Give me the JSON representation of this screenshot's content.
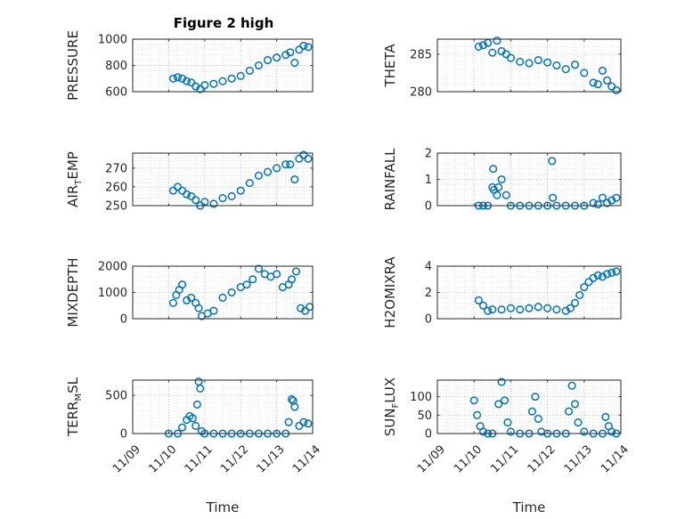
{
  "figure": {
    "title": "Figure 2 high",
    "xlabel": "Time"
  },
  "chart_data": [
    {
      "type": "scatter",
      "panel": "pressure",
      "ylabel": "PRESSURE",
      "ylim": [
        600,
        1000
      ],
      "yticks": [
        "600",
        "800",
        "1000"
      ],
      "ytick_values": [
        600,
        800,
        1000
      ],
      "x": [
        "2011-11-10T03:00",
        "2011-11-10T06:00",
        "2011-11-10T09:00",
        "2011-11-10T12:00",
        "2011-11-10T15:00",
        "2011-11-10T18:00",
        "2011-11-10T21:00",
        "2011-11-11T00:00",
        "2011-11-11T06:00",
        "2011-11-11T12:00",
        "2011-11-11T18:00",
        "2011-11-12T00:00",
        "2011-11-12T06:00",
        "2011-11-12T12:00",
        "2011-11-12T18:00",
        "2011-11-13T00:00",
        "2011-11-13T06:00",
        "2011-11-13T09:00",
        "2011-11-13T12:00",
        "2011-11-13T15:00",
        "2011-11-13T18:00",
        "2011-11-13T21:00"
      ],
      "y": [
        700,
        710,
        700,
        680,
        670,
        640,
        620,
        650,
        660,
        680,
        700,
        720,
        760,
        800,
        840,
        860,
        880,
        900,
        820,
        920,
        950,
        940
      ]
    },
    {
      "type": "scatter",
      "panel": "theta",
      "ylabel": "THETA",
      "ylim": [
        280,
        287
      ],
      "yticks": [
        "280",
        "285"
      ],
      "ytick_values": [
        280,
        285
      ],
      "x": [
        "2011-11-10T03:00",
        "2011-11-10T06:00",
        "2011-11-10T09:00",
        "2011-11-10T12:00",
        "2011-11-10T15:00",
        "2011-11-10T18:00",
        "2011-11-10T21:00",
        "2011-11-11T00:00",
        "2011-11-11T06:00",
        "2011-11-11T12:00",
        "2011-11-11T18:00",
        "2011-11-12T00:00",
        "2011-11-12T06:00",
        "2011-11-12T12:00",
        "2011-11-12T18:00",
        "2011-11-13T00:00",
        "2011-11-13T06:00",
        "2011-11-13T09:00",
        "2011-11-13T12:00",
        "2011-11-13T15:00",
        "2011-11-13T18:00",
        "2011-11-13T21:00"
      ],
      "y": [
        286,
        286.2,
        286.5,
        285.2,
        286.8,
        285.4,
        285,
        284.5,
        284,
        283.8,
        284.2,
        283.9,
        283.5,
        283,
        283.6,
        282.5,
        281.2,
        281,
        282.8,
        281.5,
        280.7,
        280.2
      ]
    },
    {
      "type": "scatter",
      "panel": "air_temp",
      "ylabel_main": "AIR",
      "ylabel_sub": "T",
      "ylabel_tail": "EMP",
      "ylim": [
        250,
        278
      ],
      "yticks": [
        "250",
        "260",
        "270"
      ],
      "ytick_values": [
        250,
        260,
        270
      ],
      "x": [
        "2011-11-10T03:00",
        "2011-11-10T06:00",
        "2011-11-10T09:00",
        "2011-11-10T12:00",
        "2011-11-10T15:00",
        "2011-11-10T18:00",
        "2011-11-10T21:00",
        "2011-11-11T00:00",
        "2011-11-11T06:00",
        "2011-11-11T12:00",
        "2011-11-11T18:00",
        "2011-11-12T00:00",
        "2011-11-12T06:00",
        "2011-11-12T12:00",
        "2011-11-12T18:00",
        "2011-11-13T00:00",
        "2011-11-13T06:00",
        "2011-11-13T09:00",
        "2011-11-13T12:00",
        "2011-11-13T15:00",
        "2011-11-13T18:00",
        "2011-11-13T21:00"
      ],
      "y": [
        258,
        260,
        258,
        256,
        255,
        253,
        250,
        252,
        251,
        254,
        255,
        258,
        262,
        266,
        268,
        270,
        272,
        272,
        264,
        275,
        277,
        275
      ]
    },
    {
      "type": "scatter",
      "panel": "rainfall",
      "ylabel": "RAINFALL",
      "ylim": [
        0,
        2
      ],
      "yticks": [
        "0",
        "1",
        "2"
      ],
      "ytick_values": [
        0,
        1,
        2
      ],
      "x": [
        "2011-11-10T03:00",
        "2011-11-10T06:00",
        "2011-11-10T09:00",
        "2011-11-10T12:00",
        "2011-11-10T12:30",
        "2011-11-10T13:00",
        "2011-11-10T15:00",
        "2011-11-10T16:00",
        "2011-11-10T18:00",
        "2011-11-10T21:00",
        "2011-11-11T00:00",
        "2011-11-11T06:00",
        "2011-11-11T12:00",
        "2011-11-11T18:00",
        "2011-11-12T00:00",
        "2011-11-12T03:00",
        "2011-11-12T03:30",
        "2011-11-12T06:00",
        "2011-11-12T12:00",
        "2011-11-12T18:00",
        "2011-11-13T00:00",
        "2011-11-13T06:00",
        "2011-11-13T09:00",
        "2011-11-13T12:00",
        "2011-11-13T15:00",
        "2011-11-13T18:00",
        "2011-11-13T21:00"
      ],
      "y": [
        0,
        0,
        0,
        0.7,
        1.4,
        0.6,
        0.4,
        0.7,
        1.0,
        0.4,
        0,
        0,
        0,
        0,
        0,
        1.7,
        0.3,
        0,
        0,
        0,
        0,
        0.1,
        0.05,
        0.3,
        0.1,
        0.2,
        0.3
      ]
    },
    {
      "type": "scatter",
      "panel": "mixdepth",
      "ylabel": "MIXDEPTH",
      "ylim": [
        0,
        2000
      ],
      "yticks": [
        "0",
        "1000",
        "2000"
      ],
      "ytick_values": [
        0,
        1000,
        2000
      ],
      "x": [
        "2011-11-10T03:00",
        "2011-11-10T05:00",
        "2011-11-10T07:00",
        "2011-11-10T09:00",
        "2011-11-10T12:00",
        "2011-11-10T15:00",
        "2011-11-10T18:00",
        "2011-11-10T20:00",
        "2011-11-10T22:00",
        "2011-11-11T02:00",
        "2011-11-11T06:00",
        "2011-11-11T12:00",
        "2011-11-11T18:00",
        "2011-11-12T00:00",
        "2011-11-12T04:00",
        "2011-11-12T08:00",
        "2011-11-12T12:00",
        "2011-11-12T16:00",
        "2011-11-12T20:00",
        "2011-11-13T00:00",
        "2011-11-13T04:00",
        "2011-11-13T08:00",
        "2011-11-13T10:00",
        "2011-11-13T13:00",
        "2011-11-13T16:00",
        "2011-11-13T19:00",
        "2011-11-13T22:00"
      ],
      "y": [
        600,
        900,
        1100,
        1300,
        700,
        800,
        600,
        400,
        100,
        200,
        300,
        800,
        1000,
        1200,
        1300,
        1500,
        1900,
        1700,
        1600,
        1700,
        1200,
        1300,
        1500,
        1800,
        400,
        300,
        450
      ]
    },
    {
      "type": "scatter",
      "panel": "h2omixra",
      "ylabel": "H2OMIXRA",
      "ylim": [
        0,
        4
      ],
      "yticks": [
        "0",
        "2",
        "4"
      ],
      "ytick_values": [
        0,
        2,
        4
      ],
      "x": [
        "2011-11-10T03:00",
        "2011-11-10T06:00",
        "2011-11-10T09:00",
        "2011-11-10T12:00",
        "2011-11-10T18:00",
        "2011-11-11T00:00",
        "2011-11-11T06:00",
        "2011-11-11T12:00",
        "2011-11-11T18:00",
        "2011-11-12T00:00",
        "2011-11-12T06:00",
        "2011-11-12T12:00",
        "2011-11-12T15:00",
        "2011-11-12T18:00",
        "2011-11-12T21:00",
        "2011-11-13T00:00",
        "2011-11-13T03:00",
        "2011-11-13T06:00",
        "2011-11-13T09:00",
        "2011-11-13T12:00",
        "2011-11-13T15:00",
        "2011-11-13T18:00",
        "2011-11-13T21:00"
      ],
      "y": [
        1.4,
        1.0,
        0.6,
        0.7,
        0.7,
        0.8,
        0.7,
        0.8,
        0.9,
        0.8,
        0.7,
        0.6,
        0.8,
        1.2,
        1.8,
        2.4,
        2.8,
        3.1,
        3.3,
        3.2,
        3.4,
        3.5,
        3.6
      ]
    },
    {
      "type": "scatter",
      "panel": "terr_msl",
      "ylabel_main": "TERR",
      "ylabel_sub": "M",
      "ylabel_tail": "SL",
      "ylim": [
        0,
        700
      ],
      "yticks": [
        "0",
        "500"
      ],
      "ytick_values": [
        0,
        500
      ],
      "x": [
        "2011-11-10T00:00",
        "2011-11-10T06:00",
        "2011-11-10T09:00",
        "2011-11-10T12:00",
        "2011-11-10T14:00",
        "2011-11-10T16:00",
        "2011-11-10T18:00",
        "2011-11-10T19:00",
        "2011-11-10T20:00",
        "2011-11-10T21:00",
        "2011-11-10T22:00",
        "2011-11-11T00:00",
        "2011-11-11T06:00",
        "2011-11-11T12:00",
        "2011-11-11T18:00",
        "2011-11-12T00:00",
        "2011-11-12T06:00",
        "2011-11-12T12:00",
        "2011-11-12T18:00",
        "2011-11-13T00:00",
        "2011-11-13T06:00",
        "2011-11-13T08:00",
        "2011-11-13T10:00",
        "2011-11-13T11:00",
        "2011-11-13T12:00",
        "2011-11-13T15:00",
        "2011-11-13T18:00",
        "2011-11-13T21:00"
      ],
      "y": [
        0,
        0,
        80,
        180,
        230,
        200,
        100,
        380,
        680,
        590,
        30,
        0,
        0,
        0,
        0,
        0,
        0,
        0,
        0,
        0,
        0,
        150,
        450,
        430,
        350,
        100,
        150,
        130
      ]
    },
    {
      "type": "scatter",
      "panel": "sun_flux",
      "ylabel_main": "SUN",
      "ylabel_sub": "F",
      "ylabel_tail": "LUX",
      "ylim": [
        0,
        145
      ],
      "yticks": [
        "0",
        "50",
        "100"
      ],
      "ytick_values": [
        0,
        50,
        100
      ],
      "x": [
        "2011-11-10T00:00",
        "2011-11-10T02:00",
        "2011-11-10T04:00",
        "2011-11-10T06:00",
        "2011-11-10T09:00",
        "2011-11-10T12:00",
        "2011-11-10T16:00",
        "2011-11-10T18:00",
        "2011-11-10T20:00",
        "2011-11-10T22:00",
        "2011-11-11T00:00",
        "2011-11-11T06:00",
        "2011-11-11T12:00",
        "2011-11-11T14:00",
        "2011-11-11T16:00",
        "2011-11-11T18:00",
        "2011-11-11T20:00",
        "2011-11-12T00:00",
        "2011-11-12T06:00",
        "2011-11-12T12:00",
        "2011-11-12T14:00",
        "2011-11-12T16:00",
        "2011-11-12T18:00",
        "2011-11-12T20:00",
        "2011-11-13T00:00",
        "2011-11-13T06:00",
        "2011-11-13T12:00",
        "2011-11-13T14:00",
        "2011-11-13T16:00",
        "2011-11-13T18:00",
        "2011-11-13T21:00"
      ],
      "y": [
        90,
        50,
        20,
        5,
        0,
        0,
        80,
        140,
        90,
        30,
        5,
        0,
        0,
        60,
        100,
        40,
        5,
        0,
        0,
        0,
        60,
        130,
        80,
        30,
        5,
        0,
        0,
        45,
        20,
        5,
        0
      ]
    }
  ],
  "xaxis": {
    "min": "2011-11-09T00:00",
    "max": "2011-11-14T00:00",
    "ticks": [
      "11/09",
      "11/10",
      "11/11",
      "11/12",
      "11/13",
      "11/14"
    ],
    "tick_values": [
      "2011-11-09T00:00",
      "2011-11-10T00:00",
      "2011-11-11T00:00",
      "2011-11-12T00:00",
      "2011-11-13T00:00",
      "2011-11-14T00:00"
    ]
  },
  "style": {
    "marker_color": "#0072BD",
    "grid": true,
    "grid_style": "dotted"
  }
}
